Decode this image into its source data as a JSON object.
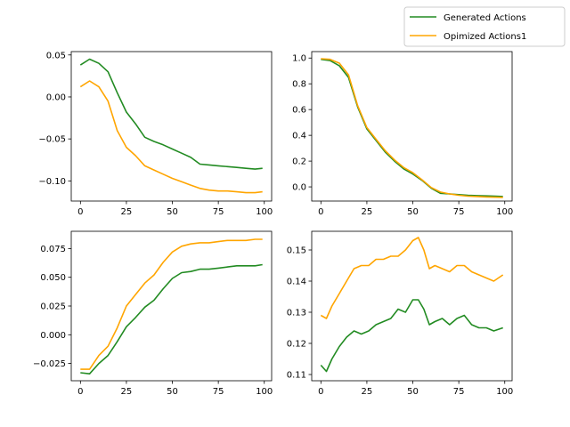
{
  "legend": {
    "placement": "upper-right",
    "entries": [
      {
        "label": "Generated Actions",
        "color": "#228b22"
      },
      {
        "label": "Opimized Actions1",
        "color": "#ffa500"
      }
    ]
  },
  "chart_data": [
    {
      "type": "line",
      "xlim": [
        -5,
        104
      ],
      "ylim": [
        -0.124,
        0.054
      ],
      "xticks": [
        0,
        25,
        50,
        75,
        100
      ],
      "yticks": [
        -0.1,
        -0.05,
        0.0,
        0.05
      ],
      "ytick_labels": [
        "−0.10",
        "−0.05",
        "0.00",
        "0.05"
      ],
      "x": [
        0,
        5,
        10,
        15,
        20,
        25,
        30,
        35,
        40,
        45,
        50,
        55,
        60,
        65,
        70,
        75,
        80,
        85,
        90,
        95,
        99
      ],
      "series": [
        {
          "name": "Generated Actions",
          "color": "#228b22",
          "values": [
            0.038,
            0.045,
            0.04,
            0.03,
            0.005,
            -0.018,
            -0.032,
            -0.048,
            -0.053,
            -0.057,
            -0.062,
            -0.067,
            -0.072,
            -0.08,
            -0.081,
            -0.082,
            -0.083,
            -0.084,
            -0.085,
            -0.086,
            -0.085
          ]
        },
        {
          "name": "Opimized Actions1",
          "color": "#ffa500",
          "values": [
            0.012,
            0.019,
            0.012,
            -0.005,
            -0.04,
            -0.06,
            -0.07,
            -0.082,
            -0.087,
            -0.092,
            -0.097,
            -0.101,
            -0.105,
            -0.109,
            -0.111,
            -0.112,
            -0.112,
            -0.113,
            -0.114,
            -0.114,
            -0.113
          ]
        }
      ]
    },
    {
      "type": "line",
      "xlim": [
        -5,
        104
      ],
      "ylim": [
        -0.11,
        1.05
      ],
      "xticks": [
        0,
        25,
        50,
        75,
        100
      ],
      "yticks": [
        0.0,
        0.2,
        0.4,
        0.6,
        0.8,
        1.0
      ],
      "ytick_labels": [
        "0.0",
        "0.2",
        "0.4",
        "0.6",
        "0.8",
        "1.0"
      ],
      "x": [
        0,
        5,
        10,
        15,
        20,
        25,
        30,
        35,
        40,
        45,
        50,
        55,
        60,
        65,
        70,
        75,
        80,
        85,
        90,
        95,
        99
      ],
      "series": [
        {
          "name": "Generated Actions",
          "color": "#228b22",
          "values": [
            0.99,
            0.98,
            0.94,
            0.85,
            0.62,
            0.45,
            0.36,
            0.27,
            0.2,
            0.14,
            0.1,
            0.05,
            -0.01,
            -0.05,
            -0.055,
            -0.06,
            -0.065,
            -0.068,
            -0.07,
            -0.072,
            -0.075
          ]
        },
        {
          "name": "Opimized Actions1",
          "color": "#ffa500",
          "values": [
            0.995,
            0.99,
            0.96,
            0.87,
            0.63,
            0.46,
            0.37,
            0.28,
            0.21,
            0.15,
            0.11,
            0.055,
            -0.005,
            -0.04,
            -0.055,
            -0.065,
            -0.072,
            -0.075,
            -0.078,
            -0.08,
            -0.082
          ]
        }
      ]
    },
    {
      "type": "line",
      "xlim": [
        -5,
        104
      ],
      "ylim": [
        -0.04,
        0.09
      ],
      "xticks": [
        0,
        25,
        50,
        75,
        100
      ],
      "yticks": [
        -0.025,
        0.0,
        0.025,
        0.05,
        0.075
      ],
      "ytick_labels": [
        "−0.025",
        "0.000",
        "0.025",
        "0.050",
        "0.075"
      ],
      "x": [
        0,
        5,
        10,
        15,
        20,
        25,
        30,
        35,
        40,
        45,
        50,
        55,
        60,
        65,
        70,
        75,
        80,
        85,
        90,
        95,
        99
      ],
      "series": [
        {
          "name": "Generated Actions",
          "color": "#228b22",
          "values": [
            -0.033,
            -0.034,
            -0.025,
            -0.018,
            -0.006,
            0.007,
            0.015,
            0.024,
            0.03,
            0.04,
            0.049,
            0.054,
            0.055,
            0.057,
            0.057,
            0.058,
            0.059,
            0.06,
            0.06,
            0.06,
            0.061
          ]
        },
        {
          "name": "Opimized Actions1",
          "color": "#ffa500",
          "values": [
            -0.03,
            -0.03,
            -0.018,
            -0.01,
            0.006,
            0.025,
            0.035,
            0.045,
            0.052,
            0.063,
            0.072,
            0.077,
            0.079,
            0.08,
            0.08,
            0.081,
            0.082,
            0.082,
            0.082,
            0.083,
            0.083
          ]
        }
      ]
    },
    {
      "type": "line",
      "xlim": [
        -5,
        104
      ],
      "ylim": [
        0.108,
        0.156
      ],
      "xticks": [
        0,
        25,
        50,
        75,
        100
      ],
      "yticks": [
        0.11,
        0.12,
        0.13,
        0.14,
        0.15
      ],
      "ytick_labels": [
        "0.11",
        "0.12",
        "0.13",
        "0.14",
        "0.15"
      ],
      "x": [
        0,
        3,
        6,
        10,
        14,
        18,
        22,
        26,
        30,
        34,
        38,
        42,
        46,
        50,
        53,
        56,
        59,
        62,
        66,
        70,
        74,
        78,
        82,
        86,
        90,
        94,
        99
      ],
      "series": [
        {
          "name": "Generated Actions",
          "color": "#228b22",
          "values": [
            0.113,
            0.111,
            0.115,
            0.119,
            0.122,
            0.124,
            0.123,
            0.124,
            0.126,
            0.127,
            0.128,
            0.131,
            0.13,
            0.134,
            0.134,
            0.131,
            0.126,
            0.127,
            0.128,
            0.126,
            0.128,
            0.129,
            0.126,
            0.125,
            0.125,
            0.124,
            0.125
          ]
        },
        {
          "name": "Opimized Actions1",
          "color": "#ffa500",
          "values": [
            0.129,
            0.128,
            0.132,
            0.136,
            0.14,
            0.144,
            0.145,
            0.145,
            0.147,
            0.147,
            0.148,
            0.148,
            0.15,
            0.153,
            0.154,
            0.15,
            0.144,
            0.145,
            0.144,
            0.143,
            0.145,
            0.145,
            0.143,
            0.142,
            0.141,
            0.14,
            0.142
          ]
        }
      ]
    }
  ]
}
